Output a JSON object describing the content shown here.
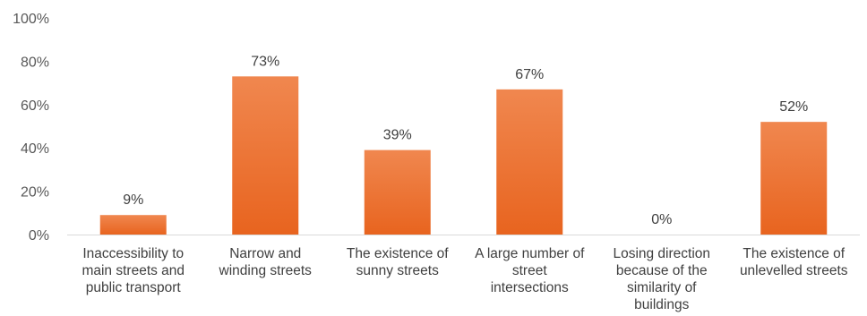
{
  "chart_data": {
    "type": "bar",
    "categories": [
      "Inaccessibility to main streets and public transport",
      "Narrow and winding streets",
      "The existence of sunny streets",
      "A large number of street intersections",
      "Losing direction because of the similarity of buildings",
      "The existence of unlevelled streets"
    ],
    "category_lines": [
      [
        "Inaccessibility to",
        "main streets and",
        "public transport"
      ],
      [
        "Narrow and",
        "winding streets"
      ],
      [
        "The existence of",
        "sunny streets"
      ],
      [
        "A large number of",
        "street",
        "intersections"
      ],
      [
        "Losing direction",
        "because of the",
        "similarity of",
        "buildings"
      ],
      [
        "The existence of",
        "unlevelled streets"
      ]
    ],
    "values": [
      9,
      73,
      39,
      67,
      0,
      52
    ],
    "data_labels": [
      "9%",
      "73%",
      "39%",
      "67%",
      "0%",
      "52%"
    ],
    "ylim": [
      0,
      100
    ],
    "yticks": [
      0,
      20,
      40,
      60,
      80,
      100
    ],
    "ytick_labels": [
      "0%",
      "20%",
      "40%",
      "60%",
      "80%",
      "100%"
    ],
    "title": "",
    "xlabel": "",
    "ylabel": "",
    "grid": false,
    "legend": "none",
    "colors": {
      "bar_top": "#F0874F",
      "bar_bottom": "#E8641F",
      "axis_line": "#D9D9D9",
      "tick_text": "#595959",
      "label_text": "#404040"
    }
  }
}
